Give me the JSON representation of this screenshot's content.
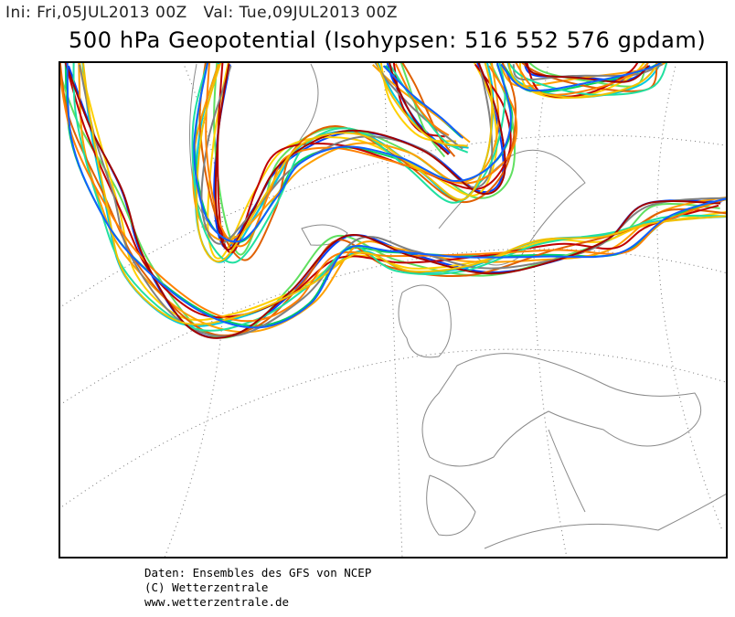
{
  "header": {
    "info": "Ini: Fri,05JUL2013 00Z   Val: Tue,09JUL2013 00Z",
    "title": "500 hPa Geopotential (Isohypsen: 516 552 576 gpdam)"
  },
  "footer": {
    "lines": [
      "Daten: Ensembles des GFS von NCEP",
      "(C) Wetterzentrale",
      "www.wetterzentrale.de"
    ]
  }
}
